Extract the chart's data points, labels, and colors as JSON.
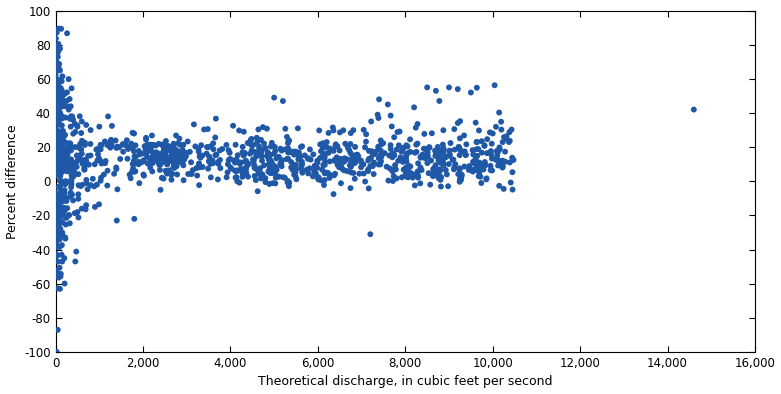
{
  "title": "",
  "xlabel": "Theoretical discharge, in cubic feet per second",
  "ylabel": "Percent difference",
  "xlim": [
    0,
    16000
  ],
  "ylim": [
    -100,
    100
  ],
  "xticks": [
    0,
    2000,
    4000,
    6000,
    8000,
    10000,
    12000,
    14000,
    16000
  ],
  "yticks": [
    -100,
    -80,
    -60,
    -40,
    -20,
    0,
    20,
    40,
    60,
    80,
    100
  ],
  "marker_color": "#2058a8",
  "marker_size": 18,
  "background_color": "#ffffff",
  "seed": 12
}
